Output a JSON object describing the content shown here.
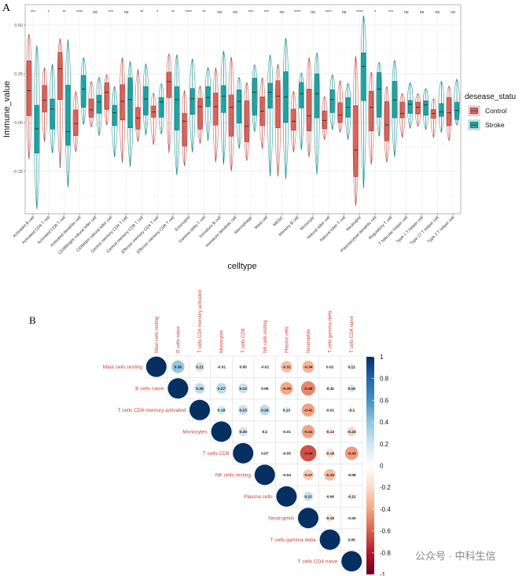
{
  "panel_labels": {
    "a": "A",
    "b": "B"
  },
  "watermark": "公众号 · 中科生信",
  "colors": {
    "control": "#D9645C",
    "stroke": "#1FA3A3",
    "label_red": "#D0403A"
  },
  "chart_data": [
    {
      "type": "boxplot-violin",
      "xlabel": "celltype",
      "ylabel": "Immune_value",
      "ylim": [
        -0.47,
        0.6
      ],
      "yticks": [
        0.5,
        0.25,
        0.0,
        -0.25
      ],
      "ytick_labels": [
        "0.50",
        "0.25",
        "0.00",
        "-0.25"
      ],
      "grid": true,
      "legend": {
        "title": "desease_statu",
        "placement": "right",
        "entries": [
          "Control",
          "Stroke"
        ]
      },
      "categories": [
        "Activated B cell",
        "Activated CD4 T cell",
        "Activated CD8 T cell",
        "Activated dendritic cell",
        "CD56bright natural killer cell",
        "CD56dim natural killer cell",
        "Central memory CD4 T cell",
        "Central memory CD8 T cell",
        "Effector memory CD4 T cell",
        "Effector memory CD8 T cell",
        "Eosinophil",
        "Gamma delta T cell",
        "Immature  B cell",
        "Immature dendritic cell",
        "Macrophage",
        "Mast cell",
        "MDSC",
        "Memory B cell",
        "Monocyte",
        "Natural killer cell",
        "Natural killer T cell",
        "Neutrophil",
        "Plasmacytoid dendritic cell",
        "Regulatory T cell",
        "T follicular helper cell",
        "Type 1 T helper cell",
        "Type 17 T helper cell",
        "Type 2 T helper cell"
      ],
      "significance": [
        "***",
        "*",
        "**",
        "****",
        "ns",
        "***",
        "ns",
        "**",
        "*",
        "**",
        "****",
        "**",
        "ns",
        "ns",
        "***",
        "***",
        "ns",
        "****",
        "ns",
        "****",
        "ns",
        "****",
        "*",
        "***",
        "ns",
        "ns",
        "ns",
        "ns"
      ],
      "series": [
        {
          "name": "Control",
          "stats_order": [
            "min",
            "q1",
            "median",
            "q3",
            "max"
          ],
          "values": [
            [
              -0.188,
              0.035,
              0.163,
              0.317,
              0.454
            ],
            [
              -0.099,
              0.054,
              0.114,
              0.191,
              0.282
            ],
            [
              -0.234,
              0.118,
              0.277,
              0.36,
              0.43
            ],
            [
              -0.15,
              -0.067,
              -0.005,
              0.065,
              0.159
            ],
            [
              -0.023,
              0.027,
              0.065,
              0.121,
              0.212
            ],
            [
              -0.013,
              0.067,
              0.156,
              0.204,
              0.246
            ],
            [
              -0.207,
              0.013,
              0.109,
              0.195,
              0.333
            ],
            [
              -0.097,
              -0.034,
              0.024,
              0.078,
              0.273
            ],
            [
              -0.114,
              0.027,
              0.055,
              0.085,
              0.152
            ],
            [
              -0.155,
              0.128,
              0.21,
              0.259,
              0.353
            ],
            [
              -0.222,
              -0.121,
              0.007,
              0.047,
              0.164
            ],
            [
              -0.108,
              -0.034,
              0.081,
              0.125,
              0.188
            ],
            [
              -0.202,
              -0.013,
              0.081,
              0.152,
              0.28
            ],
            [
              -0.249,
              -0.07,
              0.078,
              0.142,
              0.336
            ],
            [
              -0.195,
              -0.099,
              -0.019,
              0.112,
              0.206
            ],
            [
              -0.134,
              -0.016,
              0.058,
              0.132,
              0.23
            ],
            [
              -0.276,
              -0.027,
              0.136,
              0.215,
              0.3
            ],
            [
              -0.151,
              -0.039,
              0.007,
              0.069,
              0.161
            ],
            [
              -0.177,
              -0.043,
              0.034,
              0.172,
              0.333
            ],
            [
              -0.087,
              -0.032,
              0.011,
              0.06,
              0.134
            ],
            [
              -0.05,
              0.0,
              0.038,
              0.102,
              0.215
            ],
            [
              -0.426,
              -0.278,
              -0.141,
              0.087,
              0.34
            ],
            [
              -0.215,
              -0.043,
              0.078,
              0.161,
              0.259
            ],
            [
              -0.204,
              -0.094,
              -0.012,
              0.108,
              0.185
            ],
            [
              -0.077,
              0.024,
              0.047,
              0.105,
              0.149
            ],
            [
              -0.02,
              0.044,
              0.078,
              0.105,
              0.149
            ],
            [
              -0.077,
              0.022,
              0.047,
              0.067,
              0.122
            ],
            [
              -0.094,
              -0.016,
              0.051,
              0.129,
              0.188
            ]
          ]
        },
        {
          "name": "Stroke",
          "stats_order": [
            "min",
            "q1",
            "median",
            "q3",
            "max"
          ],
          "values": [
            [
              -0.444,
              -0.157,
              -0.032,
              0.089,
              0.394
            ],
            [
              -0.157,
              -0.034,
              0.069,
              0.121,
              0.3
            ],
            [
              -0.332,
              -0.117,
              -0.046,
              0.192,
              0.425
            ],
            [
              -0.01,
              0.078,
              0.172,
              0.242,
              0.333
            ],
            [
              -0.067,
              0.047,
              0.105,
              0.141,
              0.233
            ],
            [
              -0.177,
              -0.016,
              0.051,
              0.089,
              0.185
            ],
            [
              -0.228,
              -0.027,
              0.118,
              0.23,
              0.313
            ],
            [
              -0.063,
              0.038,
              0.121,
              0.185,
              0.302
            ],
            [
              -0.059,
              0.027,
              0.105,
              0.129,
              0.2
            ],
            [
              -0.269,
              -0.039,
              0.118,
              0.185,
              0.349
            ],
            [
              -0.153,
              0.042,
              0.122,
              0.175,
              0.327
            ],
            [
              -0.093,
              0.081,
              0.129,
              0.185,
              0.284
            ],
            [
              -0.215,
              0.051,
              0.136,
              0.19,
              0.367
            ],
            [
              -0.134,
              -0.003,
              0.109,
              0.168,
              0.233
            ],
            [
              -0.047,
              0.038,
              0.155,
              0.228,
              0.297
            ],
            [
              -0.276,
              0.074,
              0.156,
              0.202,
              0.347
            ],
            [
              -0.289,
              0.0,
              0.132,
              0.262,
              0.434
            ],
            [
              -0.14,
              0.075,
              0.148,
              0.206,
              0.255
            ],
            [
              -0.265,
              0.024,
              0.149,
              0.25,
              0.358
            ],
            [
              -0.036,
              0.051,
              0.118,
              0.169,
              0.246
            ],
            [
              -0.087,
              0.027,
              0.078,
              0.128,
              0.202
            ],
            [
              -0.336,
              0.112,
              0.289,
              0.358,
              0.548
            ],
            [
              -0.07,
              0.027,
              0.172,
              0.257,
              0.31
            ],
            [
              -0.177,
              0.024,
              0.116,
              0.212,
              0.32
            ],
            [
              -0.03,
              0.047,
              0.094,
              0.114,
              0.206
            ],
            [
              -0.036,
              0.038,
              0.091,
              0.112,
              0.175
            ],
            [
              -0.05,
              0.031,
              0.055,
              0.098,
              0.212
            ],
            [
              -0.013,
              0.015,
              0.062,
              0.105,
              0.223
            ]
          ]
        }
      ]
    },
    {
      "type": "heatmap",
      "subtype": "correlation-upper",
      "labels": [
        "Mast cells resting",
        "B cells naive",
        "T cells CD4 memory activated",
        "Monocytes",
        "T cells CD8",
        "NK cells resting",
        "Plasma cells",
        "Neutrophils",
        "T cells gamma delta",
        "T cells CD4 naive"
      ],
      "matrix_upper": [
        [
          "1",
          "0.39",
          "0.21",
          "-0.01",
          "0.05",
          "-0.01",
          "-0.31",
          "-0.34",
          "0.02",
          "0.12"
        ],
        [
          "1",
          "0.26",
          "0.27",
          "0.23",
          "0.05",
          "-0.39",
          "-0.49",
          "-0.11",
          "0.16"
        ],
        [
          "1",
          "0.18",
          "0.23",
          "0.26",
          "0.13",
          "-0.41",
          "-0.01",
          "-0.1"
        ],
        [
          "1",
          "0.20",
          "0.1",
          "-0.01",
          "-0.41",
          "-0.13",
          "-0.22"
        ],
        [
          "1",
          "0.07",
          "-0.05",
          "-0.64",
          "-0.18",
          "-0.43"
        ],
        [
          "1",
          "-0.04",
          "-0.27",
          "-0.32",
          "-0.08"
        ],
        [
          "1",
          "0.22",
          "-0.06",
          "-0.12"
        ],
        [
          "1",
          "-0.15",
          "-0.00"
        ],
        [
          "1",
          "0.05"
        ],
        [
          "1"
        ]
      ],
      "colorbar": {
        "range": [
          -1,
          1
        ],
        "ticks": [
          "1",
          "0.8",
          "0.6",
          "0.4",
          "0.2",
          "0",
          "-0.2",
          "-0.4",
          "-0.6",
          "-0.8",
          "-1"
        ]
      }
    }
  ]
}
